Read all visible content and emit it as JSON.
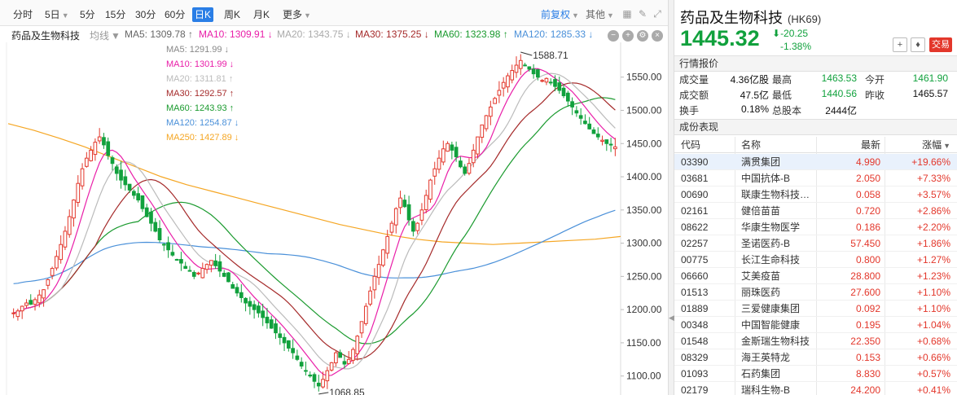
{
  "toolbar": {
    "periods": [
      "分时",
      "5日",
      "5分",
      "15分",
      "30分",
      "60分",
      "日K",
      "周K",
      "月K",
      "更多"
    ],
    "active": "日K",
    "adjust": "前复权",
    "other": "其他"
  },
  "ma_header": {
    "name": "药品及生物科技",
    "mode": "均线",
    "items": [
      {
        "label": "MA5: 1309.78 ↑",
        "color": "#666666"
      },
      {
        "label": "MA10: 1309.91 ↓",
        "color": "#e91ea8"
      },
      {
        "label": "MA20: 1343.75 ↓",
        "color": "#aaaaaa"
      },
      {
        "label": "MA30: 1375.25 ↓",
        "color": "#a52a2a"
      },
      {
        "label": "MA60: 1323.98 ↑",
        "color": "#1a9a2e"
      },
      {
        "label": "MA120: 1285.33 ↓",
        "color": "#4a90d9"
      }
    ]
  },
  "chart_data": {
    "type": "candlestick",
    "y_ticks": [
      "1550.00",
      "1500.00",
      "1450.00",
      "1400.00",
      "1350.00",
      "1300.00",
      "1250.00",
      "1200.00",
      "1150.00",
      "1100.00"
    ],
    "ylim": [
      1080,
      1595
    ],
    "high_label": "1588.71",
    "low_label": "1068.85",
    "legend": [
      {
        "label": "MA5: 1291.99 ↓",
        "color": "#888888"
      },
      {
        "label": "MA10: 1301.99 ↓",
        "color": "#e91ea8"
      },
      {
        "label": "MA20: 1311.81 ↑",
        "color": "#bbbbbb"
      },
      {
        "label": "MA30: 1292.57 ↑",
        "color": "#a52a2a"
      },
      {
        "label": "MA60: 1243.93 ↑",
        "color": "#1a9a2e"
      },
      {
        "label": "MA120: 1254.87 ↓",
        "color": "#4a90d9"
      },
      {
        "label": "MA250: 1427.89 ↓",
        "color": "#f5a623"
      }
    ],
    "close_series": [
      1195,
      1198,
      1205,
      1210,
      1208,
      1215,
      1222,
      1230,
      1245,
      1262,
      1280,
      1298,
      1318,
      1340,
      1365,
      1390,
      1412,
      1428,
      1440,
      1452,
      1460,
      1448,
      1432,
      1420,
      1405,
      1395,
      1388,
      1380,
      1372,
      1365,
      1352,
      1340,
      1330,
      1318,
      1305,
      1298,
      1290,
      1282,
      1275,
      1270,
      1262,
      1258,
      1250,
      1255,
      1262,
      1268,
      1274,
      1266,
      1258,
      1250,
      1242,
      1232,
      1225,
      1218,
      1210,
      1205,
      1200,
      1195,
      1188,
      1180,
      1172,
      1165,
      1158,
      1150,
      1142,
      1135,
      1125,
      1115,
      1108,
      1100,
      1092,
      1085,
      1095,
      1108,
      1120,
      1135,
      1128,
      1118,
      1125,
      1140,
      1160,
      1182,
      1205,
      1228,
      1250,
      1268,
      1290,
      1310,
      1330,
      1352,
      1368,
      1355,
      1335,
      1318,
      1330,
      1350,
      1372,
      1395,
      1412,
      1428,
      1442,
      1450,
      1440,
      1430,
      1415,
      1405,
      1420,
      1440,
      1460,
      1478,
      1492,
      1505,
      1518,
      1530,
      1542,
      1552,
      1560,
      1568,
      1575,
      1568,
      1562,
      1555,
      1550,
      1545,
      1548,
      1542,
      1536,
      1530,
      1522,
      1514,
      1505,
      1496,
      1488,
      1480,
      1472,
      1465,
      1460,
      1455,
      1450,
      1448,
      1445
    ],
    "ma250": [
      1480,
      1470,
      1458,
      1445,
      1430,
      1415,
      1400,
      1388,
      1378,
      1368,
      1358,
      1348,
      1338,
      1328,
      1320,
      1312,
      1306,
      1302,
      1300,
      1298,
      1300,
      1302,
      1304,
      1306,
      1310
    ]
  },
  "stock": {
    "name": "药品及生物科技",
    "code": "(HK69)",
    "price": "1445.32",
    "change": "-20.25",
    "change_pct": "-1.38%",
    "trade_label": "交易"
  },
  "quote": {
    "section": "行情报价",
    "cells": [
      {
        "k": "成交量",
        "v": "4.36亿股",
        "c": "#111111"
      },
      {
        "k": "最高",
        "v": "1463.53",
        "c": "#11a13d"
      },
      {
        "k": "今开",
        "v": "1461.90",
        "c": "#11a13d"
      },
      {
        "k": "成交额",
        "v": "47.5亿",
        "c": "#111111"
      },
      {
        "k": "最低",
        "v": "1440.56",
        "c": "#11a13d"
      },
      {
        "k": "昨收",
        "v": "1465.57",
        "c": "#111111"
      },
      {
        "k": "换手",
        "v": "0.18%",
        "c": "#111111"
      },
      {
        "k": "总股本",
        "v": "2444亿",
        "c": "#111111"
      }
    ]
  },
  "constituents": {
    "section": "成份表现",
    "headers": {
      "code": "代码",
      "name": "名称",
      "last": "最新",
      "pct": "涨幅"
    },
    "rows": [
      {
        "code": "03390",
        "name": "满贯集团",
        "last": "4.990",
        "pct": "+19.66%"
      },
      {
        "code": "03681",
        "name": "中国抗体-B",
        "last": "2.050",
        "pct": "+7.33%"
      },
      {
        "code": "00690",
        "name": "联康生物科技…",
        "last": "0.058",
        "pct": "+3.57%"
      },
      {
        "code": "02161",
        "name": "健倍苗苗",
        "last": "0.720",
        "pct": "+2.86%"
      },
      {
        "code": "08622",
        "name": "华康生物医学",
        "last": "0.186",
        "pct": "+2.20%"
      },
      {
        "code": "02257",
        "name": "圣诺医药-B",
        "last": "57.450",
        "pct": "+1.86%"
      },
      {
        "code": "00775",
        "name": "长江生命科技",
        "last": "0.800",
        "pct": "+1.27%"
      },
      {
        "code": "06660",
        "name": "艾美疫苗",
        "last": "28.800",
        "pct": "+1.23%"
      },
      {
        "code": "01513",
        "name": "丽珠医药",
        "last": "27.600",
        "pct": "+1.10%"
      },
      {
        "code": "01889",
        "name": "三爱健康集团",
        "last": "0.092",
        "pct": "+1.10%"
      },
      {
        "code": "00348",
        "name": "中国智能健康",
        "last": "0.195",
        "pct": "+1.04%"
      },
      {
        "code": "01548",
        "name": "金斯瑞生物科技",
        "last": "22.350",
        "pct": "+0.68%"
      },
      {
        "code": "08329",
        "name": "海王英特龙",
        "last": "0.153",
        "pct": "+0.66%"
      },
      {
        "code": "01093",
        "name": "石药集团",
        "last": "8.830",
        "pct": "+0.57%"
      },
      {
        "code": "02179",
        "name": "瑞科生物-B",
        "last": "24.200",
        "pct": "+0.41%"
      }
    ]
  }
}
